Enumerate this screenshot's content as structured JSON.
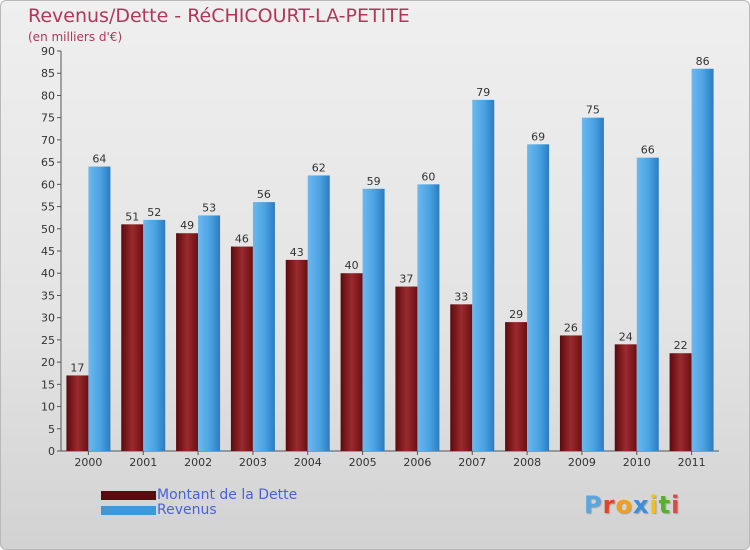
{
  "header": {
    "title": "Revenus/Dette - RéCHICOURT-LA-PETITE",
    "subtitle": "(en milliers d'€)"
  },
  "colors": {
    "dette": "#7a1518",
    "revenus": "#3d97d9",
    "title": "#b0365a",
    "legend_text": "#4a62d8"
  },
  "chart_data": {
    "type": "bar",
    "title": "Revenus/Dette - RéCHICOURT-LA-PETITE",
    "subtitle": "(en milliers d'€)",
    "categories": [
      "2000",
      "2001",
      "2002",
      "2003",
      "2004",
      "2005",
      "2006",
      "2007",
      "2008",
      "2009",
      "2010",
      "2011"
    ],
    "series": [
      {
        "name": "Montant de la Dette",
        "values": [
          17,
          51,
          49,
          46,
          43,
          40,
          37,
          33,
          29,
          26,
          24,
          22
        ]
      },
      {
        "name": "Revenus",
        "values": [
          64,
          52,
          53,
          56,
          62,
          59,
          60,
          79,
          69,
          75,
          66,
          86
        ]
      }
    ],
    "ylim": [
      0,
      90
    ],
    "yticks": [
      0,
      5,
      10,
      15,
      20,
      25,
      30,
      35,
      40,
      45,
      50,
      55,
      60,
      65,
      70,
      75,
      80,
      85,
      90
    ],
    "grid": false,
    "legend_position": "bottom-left"
  },
  "legend": {
    "dette_label": "Montant de la Dette",
    "revenus_label": "Revenus"
  },
  "logo": {
    "letters": [
      "P",
      "r",
      "o",
      "x",
      "i",
      "t",
      "i"
    ],
    "colors": [
      "#5aa7e0",
      "#e0452b",
      "#f0a020",
      "#3a8fd8",
      "#f0c020",
      "#58b030",
      "#e04848"
    ]
  }
}
